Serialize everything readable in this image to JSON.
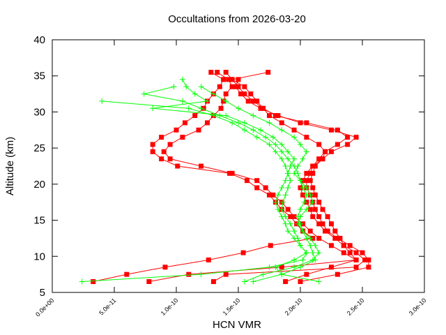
{
  "chart_data": {
    "type": "line",
    "title": "Occultations from 2026-03-20",
    "xlabel": "HCN VMR",
    "ylabel": "Altitude (km)",
    "xlim": [
      0,
      3e-10
    ],
    "ylim": [
      5,
      40
    ],
    "xticks": [
      0,
      5e-11,
      1e-10,
      1.5e-10,
      2e-10,
      2.5e-10,
      3e-10
    ],
    "xtick_labels": [
      "0.0e+00",
      "5.0e-11",
      "1.0e-10",
      "1.5e-10",
      "2.0e-10",
      "2.5e-10",
      "3.0e-10"
    ],
    "yticks": [
      5,
      10,
      15,
      20,
      25,
      30,
      35,
      40
    ],
    "ytick_labels": [
      "5",
      "10",
      "15",
      "20",
      "25",
      "30",
      "35",
      "40"
    ],
    "grid": false,
    "x_value_scale": 1e-10,
    "altitudes": [
      35.5,
      34.5,
      33.5,
      32.5,
      31.5,
      30.5,
      29.5,
      28.5,
      27.5,
      26.5,
      25.5,
      24.5,
      23.5,
      22.5,
      21.5,
      20.5,
      19.5,
      18.5,
      17.5,
      16.5,
      15.5,
      14.5,
      13.5,
      12.5,
      11.5,
      10.5,
      9.5,
      8.5,
      7.5,
      6.5
    ],
    "series": [
      {
        "color": "#ff0000",
        "marker": "square",
        "values": [
          1.28,
          1.38,
          1.35,
          1.3,
          1.25,
          1.22,
          1.15,
          1.07,
          1.0,
          0.88,
          0.81,
          0.81,
          0.88,
          1.01,
          1.43,
          1.57,
          1.65,
          1.75,
          1.8,
          1.85,
          1.92,
          1.97,
          2.02,
          2.1,
          1.76,
          1.54,
          1.26,
          0.91,
          0.6,
          0.33
        ]
      },
      {
        "color": "#ff0000",
        "marker": "square",
        "values": [
          1.74,
          1.45,
          1.5,
          1.55,
          1.62,
          1.7,
          1.8,
          2.05,
          2.3,
          2.38,
          2.3,
          2.2,
          2.15,
          2.1,
          2.08,
          2.05,
          2.05,
          2.08,
          2.1,
          2.12,
          2.15,
          2.18,
          2.22,
          2.3,
          2.4,
          2.5,
          2.55,
          2.55,
          2.3,
          2.0
        ]
      },
      {
        "color": "#ff0000",
        "marker": "square",
        "values": [
          1.33,
          1.42,
          1.45,
          1.4,
          1.38,
          1.36,
          1.3,
          1.25,
          1.18,
          1.05,
          0.95,
          0.9,
          0.95,
          1.2,
          1.45,
          1.65,
          1.72,
          1.78,
          1.85,
          1.9,
          1.95,
          2.02,
          2.08,
          2.15,
          2.25,
          2.35,
          2.45,
          1.85,
          1.1,
          0.78
        ]
      },
      {
        "color": "#ff0000",
        "marker": "square",
        "values": [
          1.4,
          1.45,
          1.55,
          1.6,
          1.65,
          1.7,
          1.75,
          1.85,
          1.95,
          2.05,
          2.15,
          2.2,
          2.18,
          2.12,
          2.1,
          2.08,
          2.1,
          2.12,
          2.15,
          2.18,
          2.22,
          2.25,
          2.28,
          2.32,
          2.35,
          2.4,
          2.45,
          2.25,
          2.05,
          1.88
        ]
      },
      {
        "color": "#ff0000",
        "marker": "square",
        "values": [
          null,
          1.5,
          1.48,
          1.52,
          1.58,
          1.68,
          1.82,
          2.0,
          2.25,
          2.45,
          2.38,
          2.25,
          2.18,
          2.1,
          2.05,
          2.02,
          2.0,
          2.02,
          2.05,
          2.08,
          2.1,
          2.15,
          2.2,
          2.28,
          2.35,
          2.45,
          2.52,
          2.45,
          1.4,
          1.3
        ]
      },
      {
        "color": "#00ff00",
        "marker": "plus",
        "values": [
          null,
          null,
          null,
          null,
          0.4,
          1.1,
          1.3,
          1.45,
          1.55,
          1.65,
          1.75,
          1.8,
          1.85,
          1.88,
          1.9,
          1.92,
          1.9,
          1.88,
          1.86,
          1.85,
          1.88,
          1.92,
          1.95,
          1.98,
          2.0,
          2.05,
          2.02,
          1.75,
          1.2,
          0.24
        ]
      },
      {
        "color": "#00ff00",
        "marker": "plus",
        "values": [
          null,
          null,
          0.98,
          0.74,
          1.05,
          1.2,
          1.35,
          1.5,
          1.62,
          1.72,
          1.8,
          1.85,
          1.9,
          1.95,
          1.98,
          2.0,
          2.02,
          2.05,
          2.03,
          2.0,
          1.98,
          2.0,
          2.02,
          2.05,
          2.08,
          2.1,
          2.12,
          2.0,
          1.85,
          1.62
        ]
      },
      {
        "color": "#00ff00",
        "marker": "plus",
        "values": [
          null,
          1.05,
          1.08,
          1.15,
          1.25,
          0.81,
          1.4,
          1.55,
          1.68,
          1.78,
          1.85,
          1.9,
          1.95,
          1.92,
          1.9,
          1.88,
          1.85,
          1.82,
          1.8,
          1.82,
          1.85,
          1.88,
          1.9,
          1.95,
          2.0,
          2.05,
          1.95,
          1.8,
          1.85,
          2.15
        ]
      },
      {
        "color": "#00ff00",
        "marker": "plus",
        "values": [
          null,
          null,
          1.2,
          1.3,
          1.4,
          1.5,
          1.62,
          1.75,
          1.85,
          1.95,
          2.0,
          2.05,
          2.02,
          1.98,
          1.95,
          2.0,
          2.05,
          2.08,
          2.1,
          2.05,
          2.0,
          1.98,
          2.02,
          2.08,
          2.12,
          2.15,
          2.1,
          1.95,
          1.7,
          1.55
        ]
      }
    ]
  }
}
